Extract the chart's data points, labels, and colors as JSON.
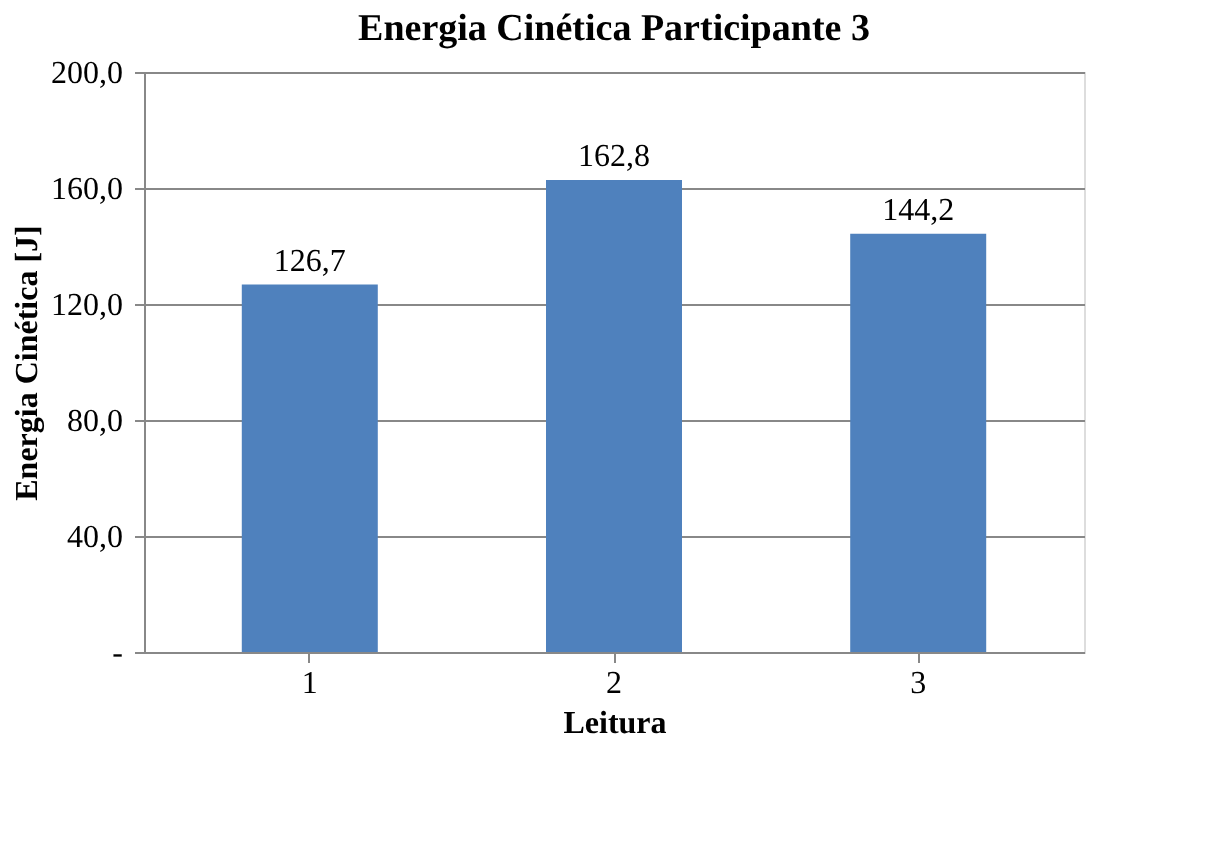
{
  "chart_data": {
    "type": "bar",
    "title": "Energia Cinética Participante 3",
    "xlabel": "Leitura",
    "ylabel": "Energia Cinética [J]",
    "categories": [
      "1",
      "2",
      "3"
    ],
    "values": [
      126.7,
      162.8,
      144.2
    ],
    "value_labels": [
      "126,7",
      "162,8",
      "144,2"
    ],
    "color": "#4f81bd",
    "ylim": [
      0,
      200
    ],
    "yticks": [
      {
        "value": 0,
        "label": "-"
      },
      {
        "value": 40,
        "label": "40,0"
      },
      {
        "value": 80,
        "label": "80,0"
      },
      {
        "value": 120,
        "label": "120,0"
      },
      {
        "value": 160,
        "label": "160,0"
      },
      {
        "value": 200,
        "label": "200,0"
      }
    ],
    "grid": "y"
  }
}
